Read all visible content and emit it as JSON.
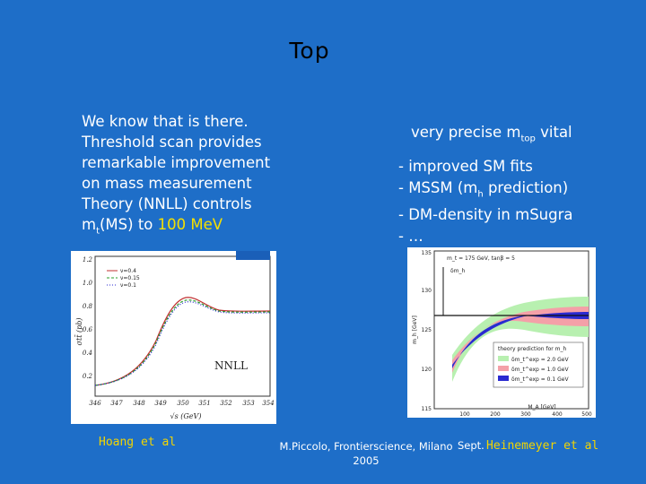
{
  "slide": {
    "title": "Top",
    "left_lines": [
      "We know that is there.",
      "Threshold scan provides",
      "remarkable improvement",
      "on mass measurement",
      "Theory (NNLL) controls",
      "m",
      "t",
      "(MS) to ",
      "100 MeV"
    ],
    "right_head": {
      "pre": "very precise m",
      "sub": "top",
      "post": " vital"
    },
    "right_items": [
      {
        "pre": "- improved SM fits",
        "sub": "",
        "post": ""
      },
      {
        "pre": "- MSSM (m",
        "sub": "h",
        "post": " prediction)"
      },
      {
        "pre": "- DM-density in mSugra",
        "sub": "",
        "post": ""
      },
      {
        "pre": "- …",
        "sub": "",
        "post": ""
      }
    ],
    "caption_left": "Hoang et al",
    "caption_right": "Heinemeyer et al",
    "footer": "M.Piccolo, Frontierscience, Milano 2005",
    "sept": "Sept."
  },
  "plot_left": {
    "y_ticks": [
      "1.2",
      "1.0",
      "0.8",
      "0.6",
      "0.4",
      "0.2"
    ],
    "x_ticks": [
      "346",
      "347",
      "348",
      "349",
      "350",
      "351",
      "352",
      "353",
      "354"
    ],
    "y_label": "σtt̄ (pb)",
    "x_label": "√s (GeV)",
    "legend": [
      "ν=0.4",
      "ν=0.15",
      "ν=0.1"
    ],
    "annotation": "NNLL"
  },
  "plot_right": {
    "header": "m_t = 175 GeV, tanβ = 5",
    "top_tick": "135",
    "y_ticks": [
      "130",
      "125",
      "120",
      "115"
    ],
    "x_ticks": [
      "100",
      "200",
      "300",
      "400",
      "500"
    ],
    "y_label": "m_h [GeV]",
    "x_label": "M_A [GeV]",
    "legend_title": "theory prediction for m_h",
    "legend": [
      "δm_t^exp = 2.0 GeV",
      "δm_t^exp = 1.0 GeV",
      "δm_t^exp = 0.1 GeV"
    ],
    "left_label": "δm_h",
    "colors": {
      "green": "#b8f0b0",
      "red": "#f4a0a8",
      "blue": "#2a2ad0"
    }
  }
}
